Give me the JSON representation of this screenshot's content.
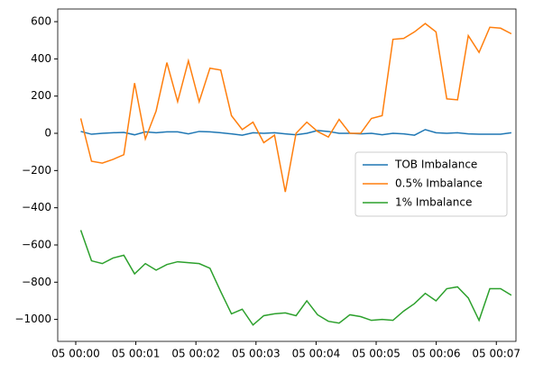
{
  "chart_data": {
    "type": "line",
    "x": [
      5,
      15.75,
      26.5,
      37.25,
      48,
      58.75,
      69.5,
      80.25,
      91,
      101.75,
      112.5,
      123.25,
      134,
      144.75,
      155.5,
      166.25,
      177,
      187.75,
      198.5,
      209.25,
      220,
      230.75,
      241.5,
      252.25,
      263,
      273.75,
      284.5,
      295.25,
      306,
      316.75,
      327.5,
      338.25,
      349,
      359.75,
      370.5,
      381.25,
      392,
      402.75,
      413.5,
      424.25,
      435
    ],
    "series": [
      {
        "name": "TOB Imbalance",
        "color": "#1f77b4",
        "values": [
          10,
          -5,
          0,
          3,
          5,
          -8,
          8,
          3,
          8,
          8,
          -3,
          10,
          8,
          3,
          -3,
          -10,
          3,
          0,
          3,
          -3,
          -8,
          0,
          15,
          10,
          0,
          0,
          -3,
          0,
          -8,
          0,
          -3,
          -10,
          20,
          3,
          0,
          3,
          -3,
          -5,
          -5,
          -5,
          3
        ]
      },
      {
        "name": "0.5% Imbalance",
        "color": "#ff7f0e",
        "values": [
          80,
          -150,
          -160,
          -140,
          -115,
          270,
          -30,
          120,
          380,
          170,
          390,
          170,
          350,
          340,
          95,
          20,
          60,
          -50,
          -10,
          -315,
          0,
          60,
          10,
          -20,
          75,
          0,
          0,
          80,
          95,
          505,
          510,
          545,
          590,
          545,
          185,
          180,
          525,
          435,
          570,
          565,
          535
        ]
      },
      {
        "name": "1% Imbalance",
        "color": "#2ca02c",
        "values": [
          -520,
          -685,
          -700,
          -670,
          -655,
          -755,
          -700,
          -735,
          -705,
          -690,
          -695,
          -700,
          -725,
          -850,
          -970,
          -945,
          -1030,
          -980,
          -970,
          -965,
          -980,
          -900,
          -975,
          -1010,
          -1020,
          -975,
          -985,
          -1005,
          -1000,
          -1005,
          -955,
          -915,
          -860,
          -900,
          -835,
          -825,
          -885,
          -1005,
          -835,
          -835,
          -870
        ]
      }
    ],
    "xlim": [
      -18,
      439.6
    ],
    "xticks": [
      {
        "value": 0,
        "label": "05 00:00"
      },
      {
        "value": 60,
        "label": "05 00:01"
      },
      {
        "value": 120,
        "label": "05 00:02"
      },
      {
        "value": 180,
        "label": "05 00:03"
      },
      {
        "value": 240,
        "label": "05 00:04"
      },
      {
        "value": 300,
        "label": "05 00:05"
      },
      {
        "value": 360,
        "label": "05 00:06"
      },
      {
        "value": 420,
        "label": "05 00:07"
      }
    ],
    "ylim": [
      -1118,
      668
    ],
    "yticks": [
      {
        "value": -1000,
        "label": "−1000"
      },
      {
        "value": -800,
        "label": "−800"
      },
      {
        "value": -600,
        "label": "−600"
      },
      {
        "value": -400,
        "label": "−400"
      },
      {
        "value": -200,
        "label": "−200"
      },
      0,
      200,
      400,
      600
    ],
    "legend": "center right"
  }
}
